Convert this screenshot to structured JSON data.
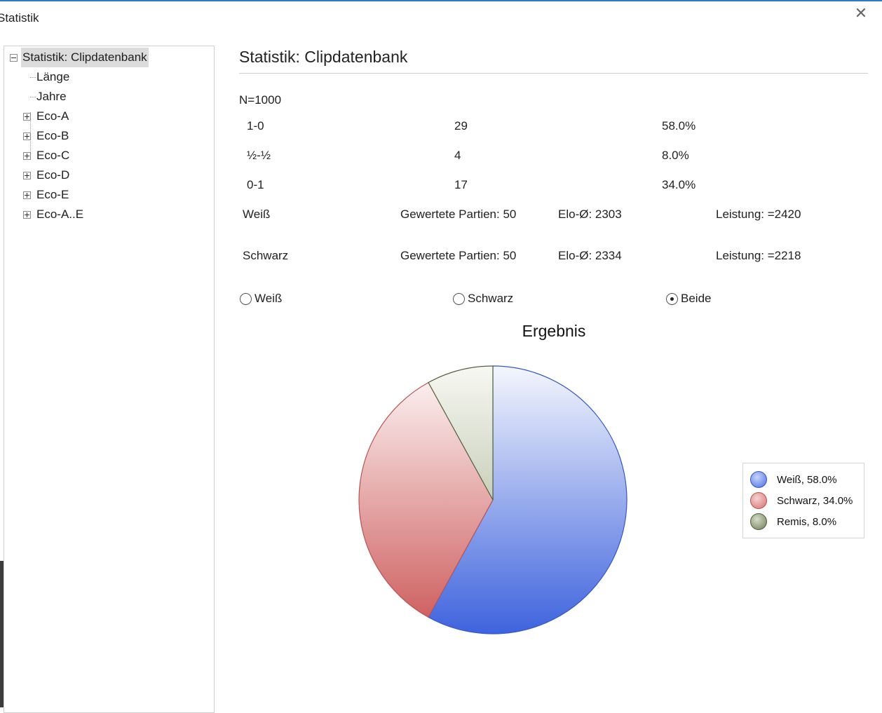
{
  "window": {
    "title": "Statistik",
    "close_glyph": "✕"
  },
  "tree": {
    "root_label": "Statistik: Clipdatenbank",
    "children": [
      "Länge",
      "Jahre",
      "Eco-A",
      "Eco-B",
      "Eco-C",
      "Eco-D",
      "Eco-E",
      "Eco-A..E"
    ]
  },
  "main": {
    "title": "Statistik: Clipdatenbank",
    "n_label": "N=1000",
    "results": [
      {
        "result": "1-0",
        "count": "29",
        "pct": "58.0%"
      },
      {
        "result": "½-½",
        "count": "4",
        "pct": "8.0%"
      },
      {
        "result": "0-1",
        "count": "17",
        "pct": "34.0%"
      }
    ],
    "players": [
      {
        "side": "Weiß",
        "games": "Gewertete Partien: 50",
        "elo": "Elo-Ø: 2303",
        "perf": "Leistung: =2420"
      },
      {
        "side": "Schwarz",
        "games": "Gewertete Partien: 50",
        "elo": "Elo-Ø: 2334",
        "perf": "Leistung: =2218"
      }
    ],
    "radios": [
      {
        "label": "Weiß",
        "selected": false
      },
      {
        "label": "Schwarz",
        "selected": false
      },
      {
        "label": "Beide",
        "selected": true
      }
    ]
  },
  "chart_data": {
    "type": "pie",
    "title": "Ergebnis",
    "slices": [
      {
        "name": "Weiß",
        "value": 58.0,
        "color": "#4a6ee0"
      },
      {
        "name": "Schwarz",
        "value": 34.0,
        "color": "#d67070"
      },
      {
        "name": "Remis",
        "value": 8.0,
        "color": "#7a8a60"
      }
    ],
    "legend_labels": [
      "Weiß, 58.0%",
      "Schwarz, 34.0%",
      "Remis, 8.0%"
    ],
    "legend_position": "right"
  }
}
